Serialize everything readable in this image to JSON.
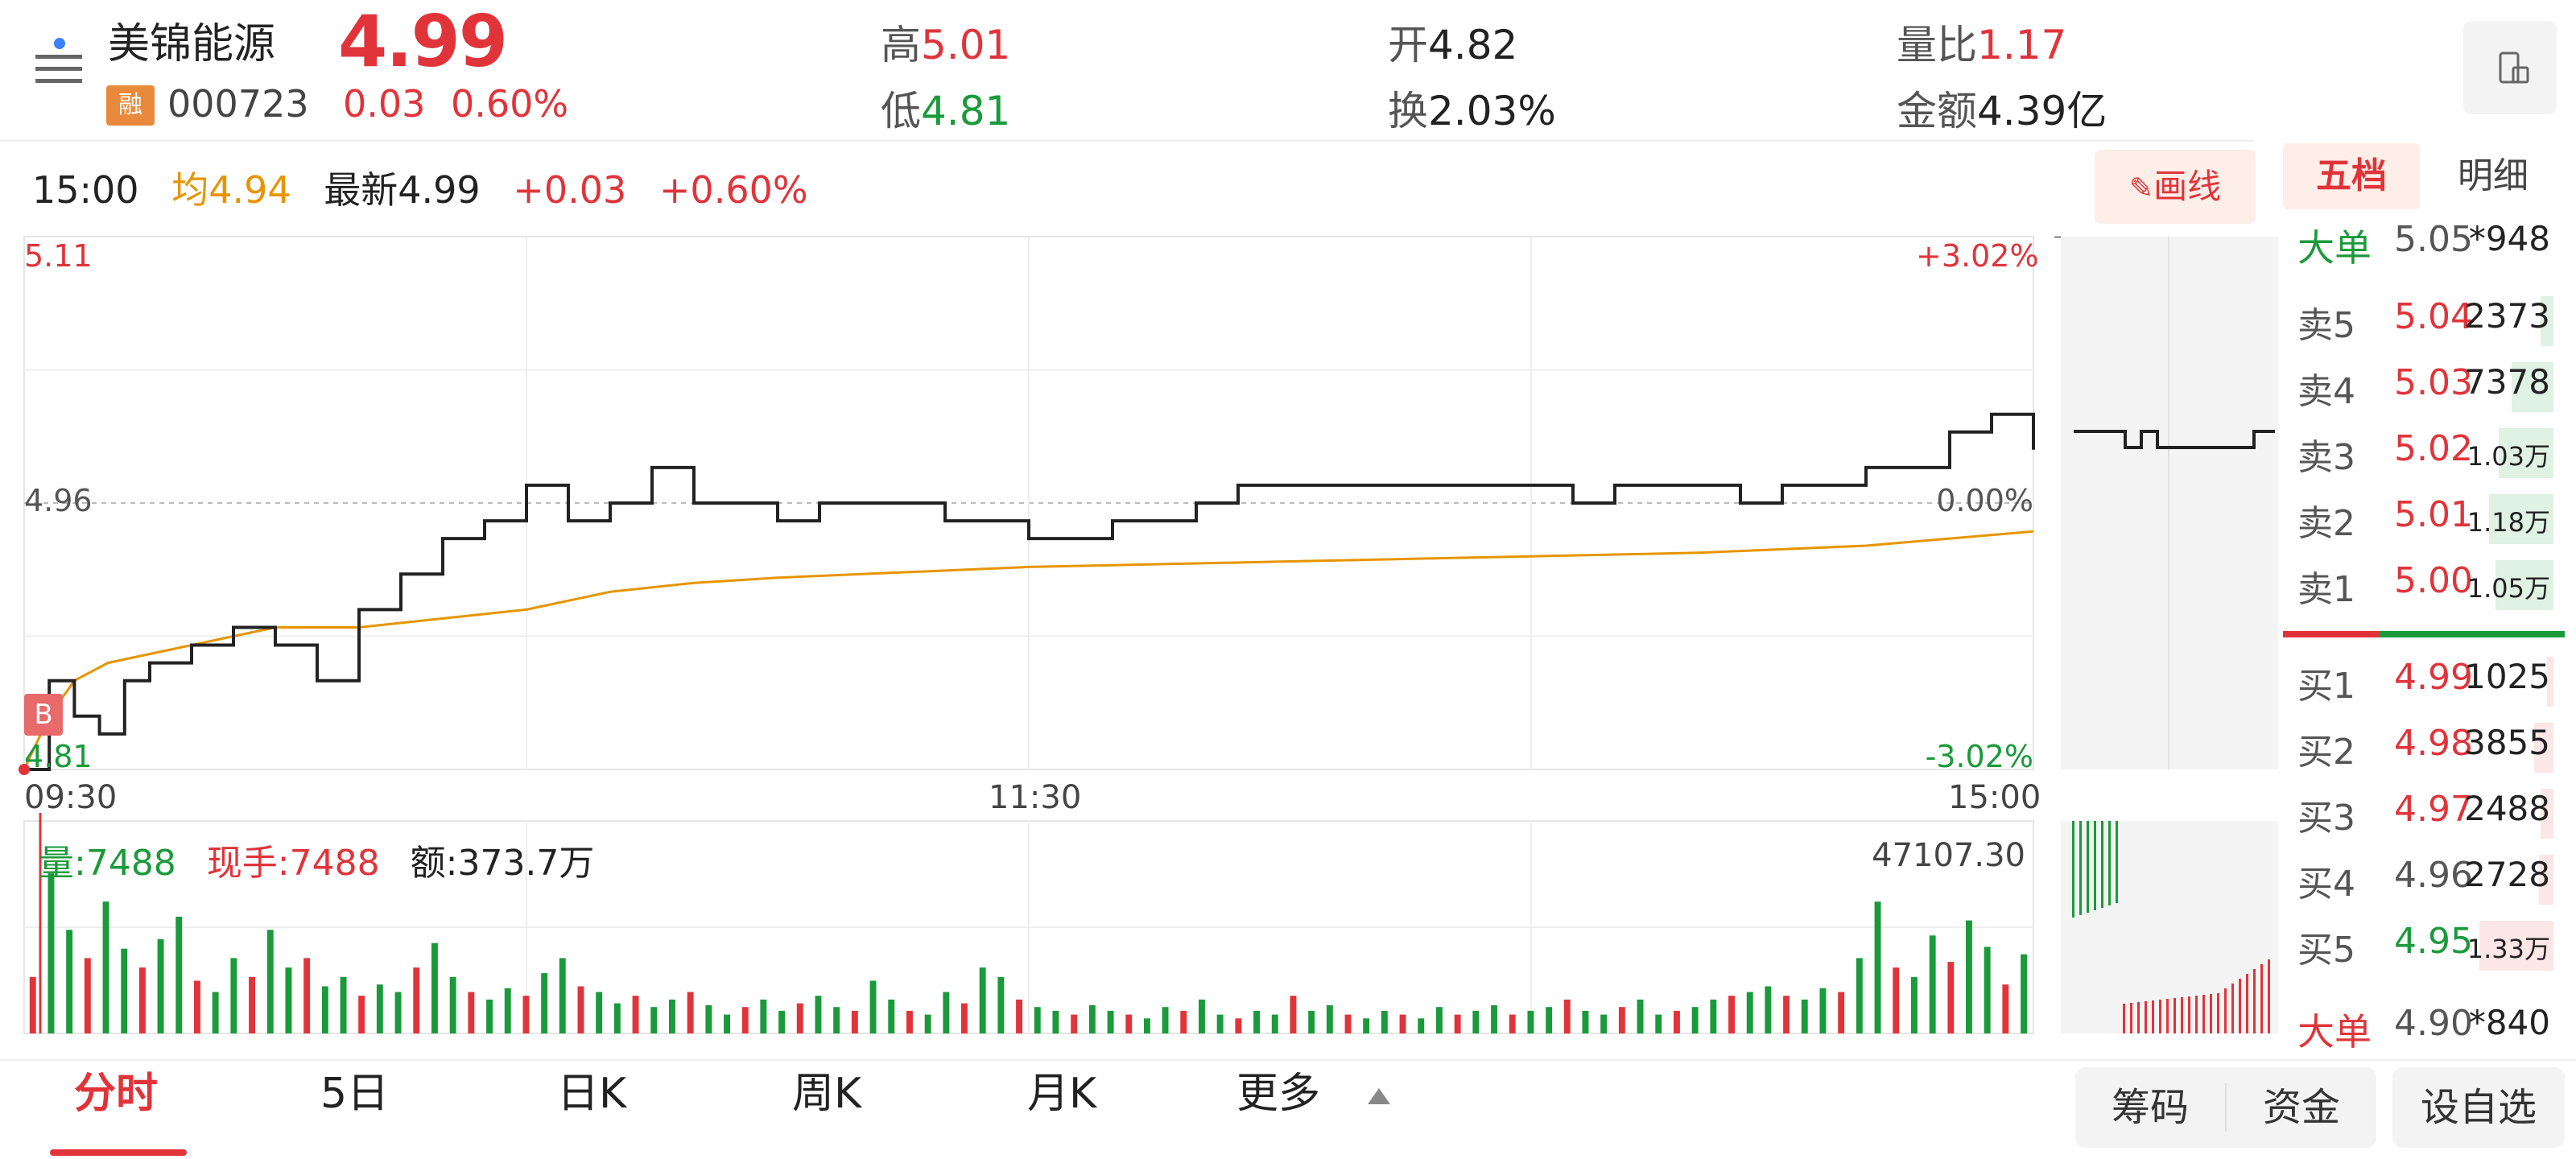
{
  "header": {
    "stock_name": "美锦能源",
    "margin_badge": "融",
    "stock_code": "000723",
    "last_price": "4.99",
    "change_abs": "0.03",
    "change_pct": "0.60%",
    "stats": [
      {
        "label": "高",
        "value": "5.01",
        "color": "#e0343a"
      },
      {
        "label": "低",
        "value": "4.81",
        "color": "#1a9a3a"
      },
      {
        "label": "开",
        "value": "4.82",
        "color": "#222222"
      },
      {
        "label": "换",
        "value": "2.03%",
        "color": "#222222"
      },
      {
        "label": "量比",
        "value": "1.17",
        "color": "#e0343a"
      },
      {
        "label": "金额",
        "value": "4.39亿",
        "color": "#222222"
      }
    ],
    "refresh_icon": "phone-rotate-icon"
  },
  "info_line": {
    "time": "15:00",
    "avg_label": "均",
    "avg_value": "4.94",
    "latest_label": "最新",
    "latest_value": "4.99",
    "change_abs": "+0.03",
    "change_pct": "+0.60%"
  },
  "draw_button": {
    "icon": "pencil-icon",
    "label": "画线"
  },
  "chart_labels": {
    "price_high": "5.11",
    "price_mid": "4.96",
    "price_low": "4.81",
    "pct_high": "+3.02%",
    "pct_mid": "0.00%",
    "pct_low": "-3.02%",
    "time_start": "09:30",
    "time_mid": "11:30",
    "time_end": "15:00",
    "marker": "B"
  },
  "volume_info": {
    "vol_label": "量:",
    "vol_value": "7488",
    "hand_label": "现手:",
    "hand_value": "7488",
    "amount_label": "额:",
    "amount_value": "373.7万",
    "max_volume": "47107.30"
  },
  "chart_data": {
    "type": "line",
    "title": "",
    "x_axis": {
      "ticks": [
        "09:30",
        "11:30",
        "15:00"
      ]
    },
    "y_axis": {
      "range": [
        4.81,
        5.11
      ],
      "ticks": [
        "5.11",
        "4.96",
        "4.81"
      ]
    },
    "y2_axis": {
      "range": [
        -3.02,
        3.02
      ],
      "ticks": [
        "+3.02%",
        "0.00%",
        "-3.02%"
      ]
    },
    "series": [
      {
        "name": "",
        "color": "#222222",
        "x": [
          0,
          3,
          6,
          9,
          12,
          15,
          20,
          25,
          30,
          35,
          40,
          45,
          50,
          55,
          60,
          65,
          70,
          75,
          80,
          85,
          90,
          95,
          100,
          105,
          110,
          115,
          120,
          125,
          130,
          135,
          140,
          145,
          150,
          155,
          160,
          165,
          170,
          175,
          180,
          185,
          190,
          195,
          200,
          205,
          210,
          215,
          220,
          225,
          230,
          235,
          240
        ],
        "y": [
          4.81,
          4.86,
          4.84,
          4.83,
          4.86,
          4.87,
          4.88,
          4.89,
          4.88,
          4.86,
          4.9,
          4.92,
          4.94,
          4.95,
          4.97,
          4.95,
          4.96,
          4.98,
          4.96,
          4.96,
          4.95,
          4.96,
          4.96,
          4.96,
          4.95,
          4.95,
          4.94,
          4.94,
          4.95,
          4.95,
          4.96,
          4.97,
          4.97,
          4.97,
          4.97,
          4.97,
          4.97,
          4.97,
          4.97,
          4.96,
          4.97,
          4.97,
          4.97,
          4.96,
          4.97,
          4.97,
          4.98,
          4.98,
          5.0,
          5.01,
          4.99
        ]
      },
      {
        "name": "",
        "color": "#e69500",
        "x": [
          0,
          3,
          6,
          10,
          20,
          30,
          40,
          50,
          60,
          70,
          80,
          90,
          100,
          110,
          120,
          130,
          140,
          150,
          160,
          170,
          180,
          190,
          200,
          210,
          220,
          230,
          240
        ],
        "y": [
          4.81,
          4.84,
          4.86,
          4.87,
          4.88,
          4.89,
          4.89,
          4.895,
          4.9,
          4.91,
          4.915,
          4.918,
          4.92,
          4.922,
          4.924,
          4.925,
          4.926,
          4.927,
          4.928,
          4.929,
          4.93,
          4.931,
          4.932,
          4.934,
          4.936,
          4.94,
          4.944
        ]
      }
    ],
    "volume": {
      "max": 47107.3,
      "values": [
        30,
        85,
        55,
        40,
        70,
        45,
        35,
        50,
        62,
        28,
        22,
        40,
        30,
        55,
        35,
        40,
        25,
        30,
        20,
        26,
        22,
        35,
        48,
        30,
        22,
        18,
        24,
        20,
        32,
        40,
        25,
        22,
        16,
        20,
        14,
        18,
        22,
        15,
        10,
        14,
        18,
        12,
        16,
        20,
        14,
        12,
        28,
        18,
        12,
        10,
        22,
        16,
        35,
        30,
        18,
        14,
        12,
        10,
        15,
        12,
        10,
        8,
        14,
        12,
        18,
        10,
        8,
        12,
        10,
        20,
        12,
        15,
        10,
        8,
        12,
        10,
        8,
        14,
        10,
        12,
        15,
        10,
        12,
        14,
        18,
        12,
        10,
        14,
        18,
        10,
        12,
        14,
        18,
        20,
        22,
        25,
        20,
        18,
        24,
        22,
        40,
        70,
        35,
        30,
        52,
        38,
        60,
        46,
        26,
        42
      ]
    }
  },
  "order_book": {
    "tabs": {
      "wudang": "五档",
      "mingxi": "明细"
    },
    "big_sell": {
      "label": "大单",
      "price": "5.05",
      "volume": "*948"
    },
    "asks": [
      {
        "label": "卖5",
        "price": "5.04",
        "volume": "2373",
        "bar": 0.08
      },
      {
        "label": "卖4",
        "price": "5.03",
        "volume": "7378",
        "bar": 0.26
      },
      {
        "label": "卖3",
        "price": "5.02",
        "volume": "1.03万",
        "bar": 0.34
      },
      {
        "label": "卖2",
        "price": "5.01",
        "volume": "1.18万",
        "bar": 0.4
      },
      {
        "label": "卖1",
        "price": "5.00",
        "volume": "1.05万",
        "bar": 0.36
      }
    ],
    "bids": [
      {
        "label": "买1",
        "price": "4.99",
        "volume": "1025",
        "bar": 0.04
      },
      {
        "label": "买2",
        "price": "4.98",
        "volume": "3855",
        "bar": 0.12
      },
      {
        "label": "买3",
        "price": "4.97",
        "volume": "2488",
        "bar": 0.08
      },
      {
        "label": "买4",
        "price": "4.96",
        "volume": "2728",
        "bar": 0.09
      },
      {
        "label": "买5",
        "price": "4.95",
        "volume": "1.33万",
        "bar": 0.46
      }
    ],
    "big_buy": {
      "label": "大单",
      "price": "4.90",
      "volume": "*840"
    }
  },
  "bottom_tabs": [
    "分时",
    "5日",
    "日K",
    "周K",
    "月K",
    "更多"
  ],
  "bottom_buttons": [
    "筹码",
    "资金",
    "设自选"
  ],
  "colors": {
    "up": "#e0343a",
    "down": "#1a9a3a",
    "avg": "#e69500",
    "price_line": "#222222"
  }
}
